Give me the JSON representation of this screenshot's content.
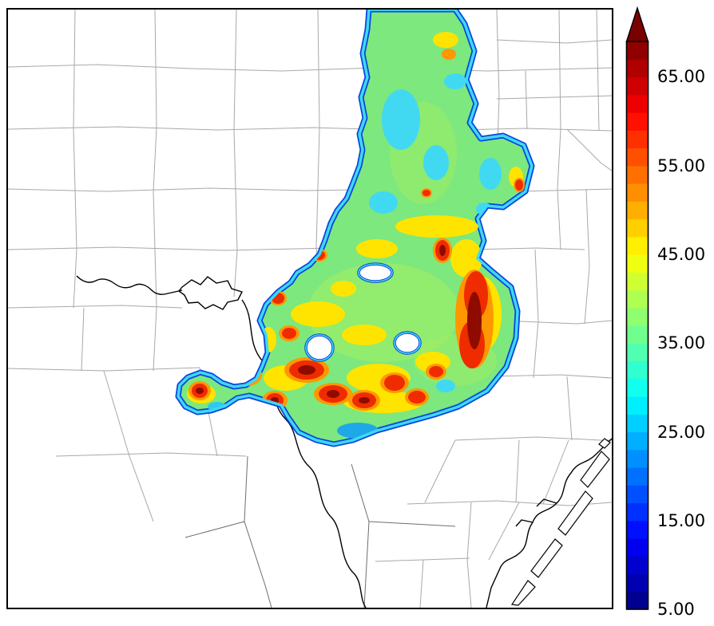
{
  "figure": {
    "title": "",
    "description": "Filled contour heat map of a value field over an elongated shaded region, drawn on a county-boundary base map with coastline and barrier islands in the lower right, a lake and river in the center, and a vertical colorbar on the right."
  },
  "chart_data": {
    "type": "heatmap",
    "title": "",
    "xlabel": "",
    "ylabel": "",
    "grid": "county boundaries (thin gray polygons), no axis ticks or labels on map frame",
    "legend_position": "right colorbar",
    "colorbar": {
      "orientation": "vertical",
      "position": "right",
      "ticks": [
        "65.00",
        "55.00",
        "45.00",
        "35.00",
        "25.00",
        "15.00",
        "5.00"
      ],
      "tick_values": [
        65,
        55,
        45,
        35,
        25,
        15,
        5
      ],
      "vmin": 5,
      "vmax": 69,
      "band_step": 2,
      "over_arrow": true,
      "over_color": "#7a0000",
      "border_color": "#000000",
      "colormap": "jet",
      "colormap_anchors": [
        {
          "t": 0.0,
          "color": "#000080"
        },
        {
          "t": 0.125,
          "color": "#0000FF"
        },
        {
          "t": 0.375,
          "color": "#00FFFF"
        },
        {
          "t": 0.625,
          "color": "#FFFF00"
        },
        {
          "t": 0.875,
          "color": "#FF0000"
        },
        {
          "t": 1.0,
          "color": "#800000"
        }
      ]
    },
    "region_field": {
      "interior_typical_value": 37,
      "edge_value": 5,
      "hole_count": 3,
      "hotspots_approx": [
        {
          "x_frac": 0.77,
          "y_frac": 0.52,
          "value": 66,
          "note": "tall vertical high-value streak on east side"
        },
        {
          "x_frac": 0.5,
          "y_frac": 0.61,
          "value": 64,
          "note": "largest southwest hotspot"
        },
        {
          "x_frac": 0.54,
          "y_frac": 0.65,
          "value": 62
        },
        {
          "x_frac": 0.4,
          "y_frac": 0.62,
          "value": 60
        },
        {
          "x_frac": 0.32,
          "y_frac": 0.64,
          "value": 62,
          "note": "western arm hotspot"
        },
        {
          "x_frac": 0.72,
          "y_frac": 0.41,
          "value": 58
        },
        {
          "x_frac": 0.64,
          "y_frac": 0.63,
          "value": 58
        },
        {
          "x_frac": 0.68,
          "y_frac": 0.66,
          "value": 56
        },
        {
          "x_frac": 0.47,
          "y_frac": 0.55,
          "value": 56
        },
        {
          "x_frac": 0.45,
          "y_frac": 0.49,
          "value": 54
        },
        {
          "x_frac": 0.52,
          "y_frac": 0.42,
          "value": 52
        },
        {
          "x_frac": 0.85,
          "y_frac": 0.3,
          "value": 54
        }
      ],
      "cool_patches_approx": [
        {
          "x_frac": 0.65,
          "y_frac": 0.19,
          "value": 27,
          "note": "cyan patch in upper neck"
        },
        {
          "x_frac": 0.8,
          "y_frac": 0.28,
          "value": 28,
          "note": "northeast lobe"
        },
        {
          "x_frac": 0.58,
          "y_frac": 0.71,
          "value": 22,
          "note": "blue patch near southern tip"
        },
        {
          "x_frac": 0.68,
          "y_frac": 0.7,
          "value": 24
        }
      ]
    },
    "map_layers": {
      "background": "#ffffff",
      "county_boundary_color": "#a8a8a8",
      "coastline_color": "#000000",
      "region_edge_outer_color": "#0a44e0",
      "region_edge_inner_color": "#3fd8f0",
      "region_fill_color": "#7de87d",
      "warm_patch_color": "#ffe400",
      "orange_patch_color": "#ff9800",
      "hotspot_color": "#ee2c00",
      "hotspot_core_color": "#8f0b00"
    }
  }
}
